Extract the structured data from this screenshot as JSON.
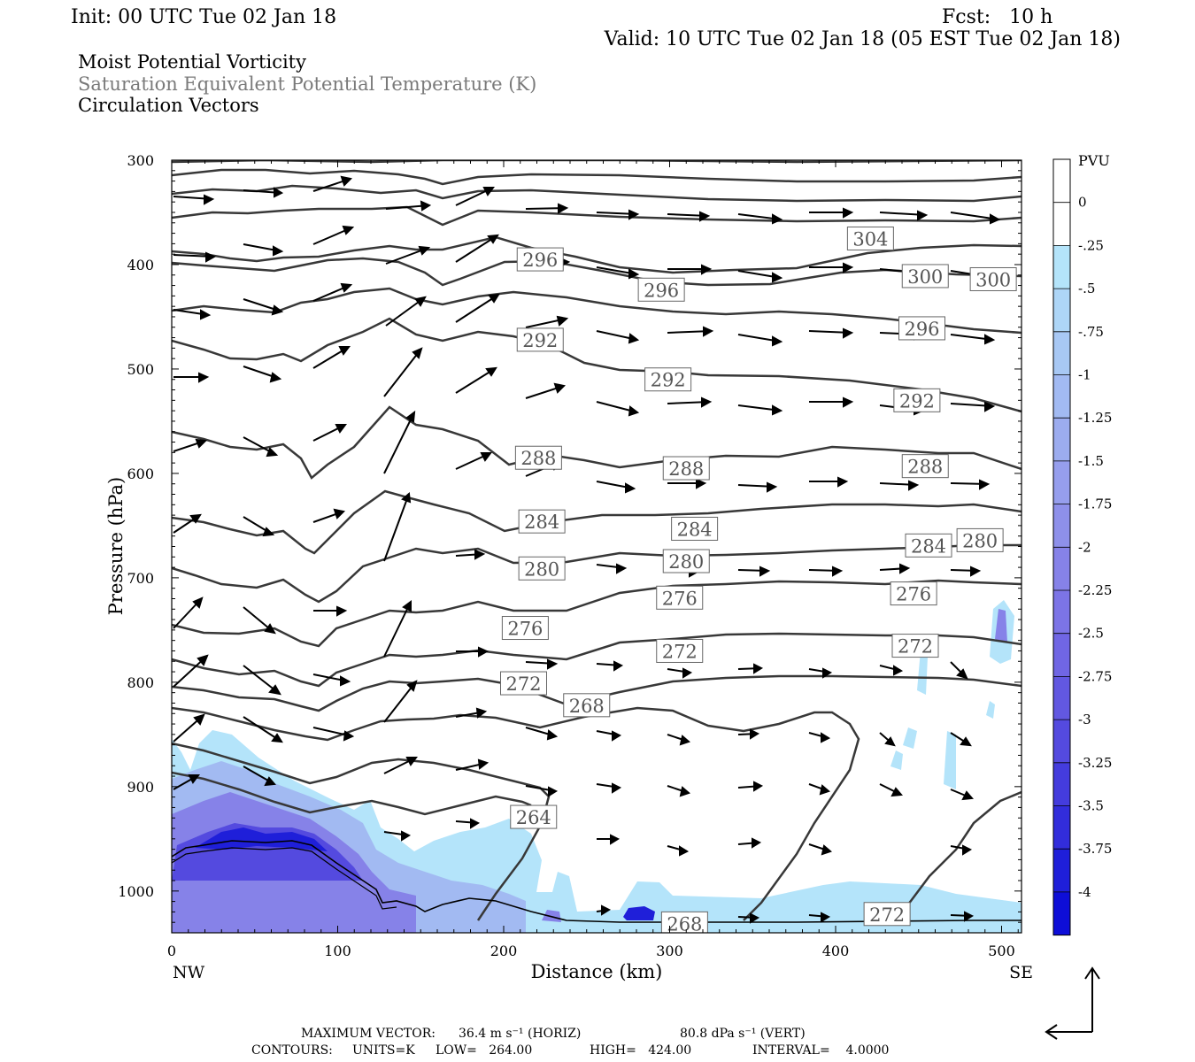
{
  "header": {
    "init": "Init: 00 UTC Tue 02 Jan 18",
    "fcst": "Fcst:   10 h",
    "valid": "Valid: 10 UTC Tue 02 Jan 18 (05 EST Tue 02 Jan 18)"
  },
  "fields": [
    {
      "label": "Moist Potential Vorticity",
      "color": "#000000"
    },
    {
      "label": "Saturation Equivalent Potential Temperature (K)",
      "color": "#7a7a7a"
    },
    {
      "label": "Circulation Vectors",
      "color": "#000000"
    }
  ],
  "footer": {
    "maxvec_prefix": "MAXIMUM VECTOR:",
    "horiz": "36.4 m s⁻¹ (HORIZ)",
    "vert": "80.8 dPa s⁻¹ (VERT)",
    "contours_prefix": "CONTOURS:",
    "units": "UNITS=K",
    "low": "LOW=   264.00",
    "high": "HIGH=   424.00",
    "interval": "INTERVAL=    4.0000"
  },
  "chart_data": {
    "type": "cross-section",
    "xlabel": "Distance (km)",
    "ylabel": "Pressure (hPa)",
    "xlim": [
      0,
      512
    ],
    "ylim": [
      300,
      1040
    ],
    "x_ticks": [
      0,
      100,
      200,
      300,
      400,
      500
    ],
    "y_ticks": [
      300,
      400,
      500,
      600,
      700,
      800,
      900,
      1000
    ],
    "x_end_labels": {
      "left": "NW",
      "right": "SE"
    },
    "colorbar": {
      "unit": "PVU",
      "levels": [
        "0",
        "-.25",
        "-.5",
        "-.75",
        "-1",
        "-1.25",
        "-1.5",
        "-1.75",
        "-2",
        "-2.25",
        "-2.5",
        "-2.75",
        "-3",
        "-3.25",
        "-3.5",
        "-3.75",
        "-4"
      ],
      "colors": [
        "#ffffff",
        "#ffffff",
        "#b4e4fa",
        "#aed6f7",
        "#a8c8f4",
        "#a2baf2",
        "#9cacef",
        "#969eed",
        "#8e90ea",
        "#8682e8",
        "#7c74e6",
        "#7066e4",
        "#6258e1",
        "#544adf",
        "#443cdd",
        "#322ddb",
        "#1f1fd9",
        "#0e0ed7"
      ]
    },
    "theta_e_contour_labels": [
      {
        "value": "304",
        "x": 421,
        "p": 375
      },
      {
        "value": "300",
        "x": 454,
        "p": 411
      },
      {
        "value": "300",
        "x": 495,
        "p": 414
      },
      {
        "value": "296",
        "x": 222,
        "p": 395
      },
      {
        "value": "296",
        "x": 295,
        "p": 424
      },
      {
        "value": "296",
        "x": 452,
        "p": 461
      },
      {
        "value": "292",
        "x": 222,
        "p": 472
      },
      {
        "value": "292",
        "x": 299,
        "p": 510
      },
      {
        "value": "292",
        "x": 449,
        "p": 530
      },
      {
        "value": "288",
        "x": 221,
        "p": 585
      },
      {
        "value": "288",
        "x": 310,
        "p": 595
      },
      {
        "value": "288",
        "x": 454,
        "p": 593
      },
      {
        "value": "284",
        "x": 223,
        "p": 646
      },
      {
        "value": "284",
        "x": 315,
        "p": 653
      },
      {
        "value": "284",
        "x": 456,
        "p": 669
      },
      {
        "value": "280",
        "x": 223,
        "p": 691
      },
      {
        "value": "280",
        "x": 310,
        "p": 684
      },
      {
        "value": "280",
        "x": 487,
        "p": 664
      },
      {
        "value": "276",
        "x": 213,
        "p": 748
      },
      {
        "value": "276",
        "x": 306,
        "p": 719
      },
      {
        "value": "276",
        "x": 447,
        "p": 715
      },
      {
        "value": "272",
        "x": 212,
        "p": 801
      },
      {
        "value": "272",
        "x": 306,
        "p": 770
      },
      {
        "value": "272",
        "x": 448,
        "p": 765
      },
      {
        "value": "268",
        "x": 250,
        "p": 822
      },
      {
        "value": "268",
        "x": 309,
        "p": 1031
      },
      {
        "value": "264",
        "x": 218,
        "p": 929
      },
      {
        "value": "272",
        "x": 431,
        "p": 1022
      }
    ]
  }
}
